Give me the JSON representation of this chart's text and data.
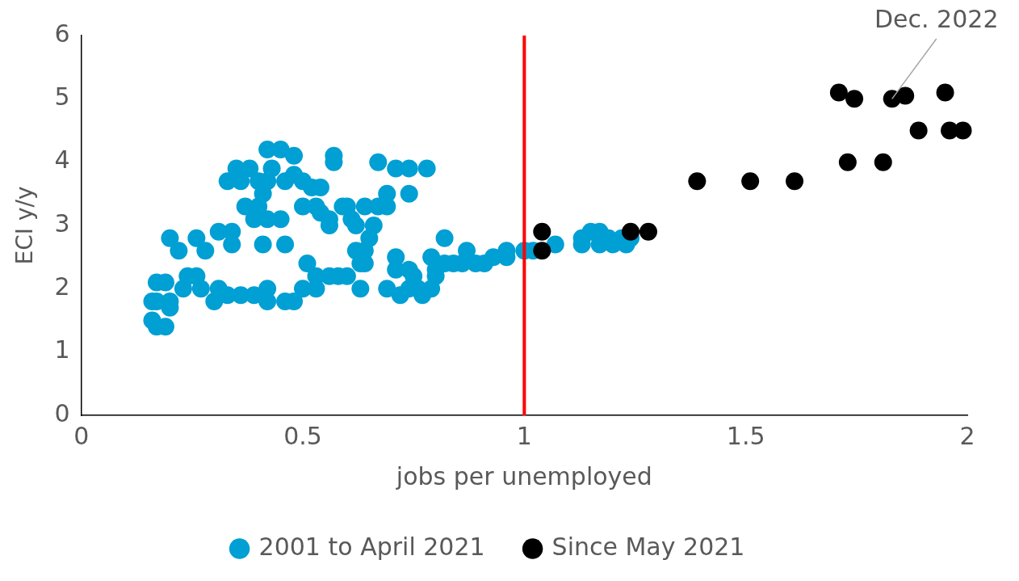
{
  "chart_data": {
    "type": "scatter",
    "xlabel": "jobs per unemployed",
    "ylabel": "ECI y/y",
    "xlim": [
      0,
      2
    ],
    "ylim": [
      0,
      6
    ],
    "xticks": [
      0,
      0.5,
      1,
      1.5,
      2
    ],
    "yticks": [
      0,
      1,
      2,
      3,
      4,
      5,
      6
    ],
    "grid": false,
    "legend": "bottom",
    "marker": "circle",
    "ref_lines": [
      {
        "axis": "x",
        "value": 1,
        "color": "#ff0000"
      }
    ],
    "annotations": [
      {
        "text": "Dec. 2022",
        "x": 1.83,
        "y": 5.0
      }
    ],
    "series": [
      {
        "name": "2001 to April 2021",
        "color": "#009fd4",
        "x": [
          0.16,
          0.16,
          0.17,
          0.19,
          0.17,
          0.19,
          0.17,
          0.2,
          0.2,
          0.2,
          0.22,
          0.23,
          0.24,
          0.26,
          0.26,
          0.28,
          0.27,
          0.3,
          0.31,
          0.31,
          0.34,
          0.34,
          0.33,
          0.36,
          0.39,
          0.42,
          0.42,
          0.41,
          0.46,
          0.45,
          0.39,
          0.42,
          0.37,
          0.33,
          0.35,
          0.36,
          0.38,
          0.4,
          0.42,
          0.45,
          0.48,
          0.43,
          0.41,
          0.4,
          0.42,
          0.46,
          0.48,
          0.5,
          0.52,
          0.54,
          0.5,
          0.53,
          0.54,
          0.57,
          0.57,
          0.56,
          0.56,
          0.59,
          0.6,
          0.62,
          0.61,
          0.51,
          0.5,
          0.53,
          0.53,
          0.48,
          0.46,
          0.56,
          0.58,
          0.6,
          0.62,
          0.63,
          0.64,
          0.63,
          0.64,
          0.65,
          0.66,
          0.64,
          0.67,
          0.69,
          0.67,
          0.69,
          0.71,
          0.74,
          0.78,
          0.74,
          0.69,
          0.71,
          0.71,
          0.72,
          0.74,
          0.74,
          0.75,
          0.76,
          0.77,
          0.79,
          0.79,
          0.8,
          0.8,
          0.82,
          0.82,
          0.84,
          0.87,
          0.86,
          0.89,
          0.91,
          0.93,
          0.96,
          0.96,
          1.0,
          1.02,
          1.07,
          1.13,
          1.13,
          1.15,
          1.17,
          1.17,
          1.19,
          1.2,
          1.22,
          1.23,
          1.24
        ],
        "values": [
          1.8,
          1.5,
          1.4,
          1.4,
          2.1,
          2.1,
          1.8,
          1.8,
          1.7,
          2.8,
          2.6,
          2.0,
          2.2,
          2.2,
          2.8,
          2.6,
          2.0,
          1.8,
          2.0,
          2.9,
          2.9,
          2.7,
          1.9,
          1.9,
          1.9,
          2.0,
          1.8,
          2.7,
          2.7,
          3.1,
          3.1,
          3.1,
          3.3,
          3.7,
          3.9,
          3.7,
          3.9,
          3.7,
          4.2,
          4.2,
          4.1,
          3.9,
          3.5,
          3.3,
          3.7,
          3.7,
          3.8,
          3.7,
          3.6,
          3.6,
          3.3,
          3.3,
          3.2,
          4.1,
          4.0,
          3.1,
          3.0,
          3.3,
          3.3,
          3.0,
          3.1,
          2.4,
          2.0,
          2.0,
          2.2,
          1.8,
          1.8,
          2.2,
          2.2,
          2.2,
          2.6,
          2.4,
          2.4,
          2.0,
          2.6,
          2.8,
          3.0,
          3.3,
          3.3,
          3.3,
          4.0,
          3.5,
          3.9,
          3.9,
          3.9,
          3.5,
          2.0,
          2.5,
          2.3,
          1.9,
          2.0,
          2.3,
          2.2,
          2.0,
          1.9,
          2.0,
          2.5,
          2.3,
          2.2,
          2.8,
          2.4,
          2.4,
          2.6,
          2.4,
          2.4,
          2.4,
          2.5,
          2.6,
          2.5,
          2.6,
          2.6,
          2.7,
          2.8,
          2.7,
          2.9,
          2.9,
          2.7,
          2.8,
          2.7,
          2.8,
          2.7,
          2.8
        ]
      },
      {
        "name": "Since May 2021",
        "color": "#000000",
        "x": [
          1.04,
          1.04,
          1.24,
          1.28,
          1.39,
          1.51,
          1.61,
          1.71,
          1.745,
          1.73,
          1.81,
          1.83,
          1.86,
          1.89,
          1.95,
          1.96,
          1.99
        ],
        "values": [
          2.9,
          2.6,
          2.9,
          2.9,
          3.7,
          3.7,
          3.7,
          5.1,
          5.0,
          4.0,
          4.0,
          5.0,
          5.05,
          4.5,
          5.1,
          4.5,
          4.5
        ]
      }
    ]
  }
}
